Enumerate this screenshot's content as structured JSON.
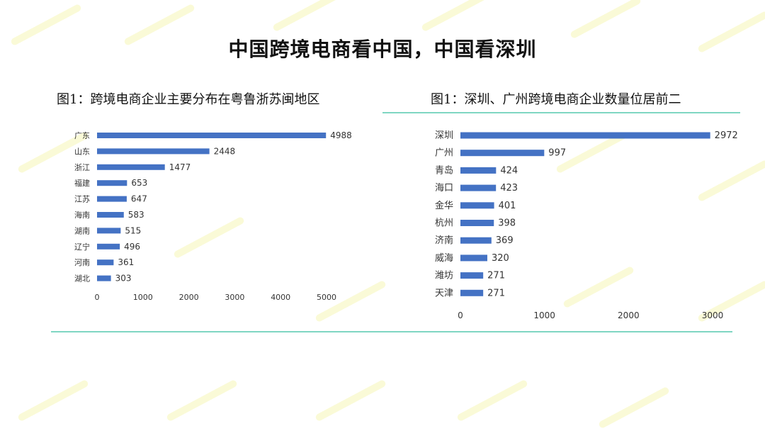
{
  "page": {
    "title": "中国跨境电商看中国，中国看深圳",
    "accent_color": "#4472c4",
    "rule_color": "#7fd6c2"
  },
  "chart_data": [
    {
      "type": "bar",
      "orientation": "horizontal",
      "title": "图1：跨境电商企业主要分布在粤鲁浙苏闽地区",
      "categories": [
        "广东",
        "山东",
        "浙江",
        "福建",
        "江苏",
        "海南",
        "湖南",
        "辽宁",
        "河南",
        "湖北"
      ],
      "values": [
        4988,
        2448,
        1477,
        653,
        647,
        583,
        515,
        496,
        361,
        303
      ],
      "xlim": [
        0,
        5000
      ],
      "xticks": [
        0,
        1000,
        2000,
        3000,
        4000,
        5000
      ],
      "data_labels": true,
      "grid": false
    },
    {
      "type": "bar",
      "orientation": "horizontal",
      "title": "图1：深圳、广州跨境电商企业数量位居前二",
      "categories": [
        "深圳",
        "广州",
        "青岛",
        "海口",
        "金华",
        "杭州",
        "济南",
        "威海",
        "潍坊",
        "天津"
      ],
      "values": [
        2972,
        997,
        424,
        423,
        401,
        398,
        369,
        320,
        271,
        271
      ],
      "xlim": [
        0,
        3000
      ],
      "xticks": [
        0,
        1000,
        2000,
        3000
      ],
      "data_labels": true,
      "grid": false
    }
  ]
}
